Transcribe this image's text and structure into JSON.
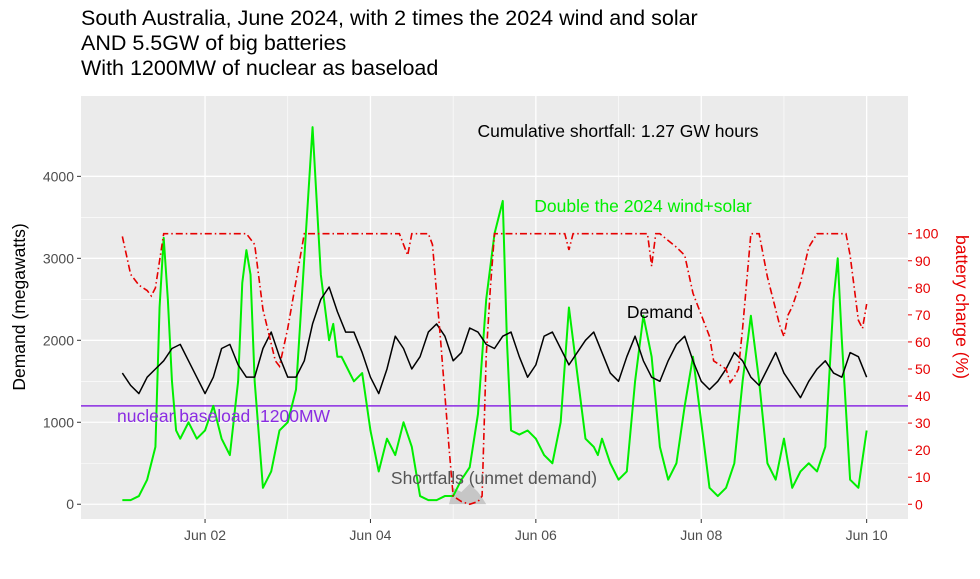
{
  "colors": {
    "panel": "#ebebeb",
    "grid": "#ffffff",
    "demand": "#000000",
    "renewables": "#00ee00",
    "battery": "#e60000",
    "nuclear": "#8a2be2",
    "shortfall": "#bdbdbd",
    "shortfall_label": "#555555",
    "axis_text": "#4d4d4d",
    "right_axis": "#e60000"
  },
  "chart_data": {
    "type": "line",
    "title_lines": [
      "South Australia, June 2024, with 2 times the 2024 wind and solar",
      "AND 5.5GW of big batteries",
      "With 1200MW of nuclear as baseload"
    ],
    "xlabel": "",
    "ylabel": "Demand (megawatts)",
    "y2label": "battery charge (%)",
    "xlim": [
      0.5,
      10.5
    ],
    "ylim": [
      -180,
      4980
    ],
    "y2lim": [
      -5.45,
      150.9
    ],
    "x_ticks": [
      2,
      4,
      6,
      8,
      10
    ],
    "x_tick_labels": [
      "Jun 02",
      "Jun 04",
      "Jun 06",
      "Jun 08",
      "Jun 10"
    ],
    "y_ticks": [
      0,
      1000,
      2000,
      3000,
      4000
    ],
    "y_tick_labels": [
      "0",
      "1000",
      "2000",
      "3000",
      "4000"
    ],
    "y2_ticks": [
      0,
      10,
      20,
      30,
      40,
      50,
      60,
      70,
      80,
      90,
      100
    ],
    "y2_tick_labels": [
      "0",
      "10",
      "20",
      "30",
      "40",
      "50",
      "60",
      "70",
      "80",
      "90",
      "100"
    ],
    "grid": true,
    "legend": "none",
    "annotations": {
      "cumulative": "Cumulative shortfall: 1.27 GW hours",
      "renewables": "Double the 2024 wind+solar",
      "demand": "Demand",
      "nuclear": "nuclear baseload ,1200MW",
      "shortfall": "Shortfalls (unmet demand)"
    },
    "series": [
      {
        "key": "demand",
        "axis": "left",
        "x": [
          1.0,
          1.1,
          1.2,
          1.3,
          1.4,
          1.5,
          1.6,
          1.7,
          1.8,
          1.9,
          2.0,
          2.1,
          2.2,
          2.3,
          2.4,
          2.5,
          2.6,
          2.7,
          2.8,
          2.9,
          3.0,
          3.1,
          3.2,
          3.3,
          3.4,
          3.5,
          3.6,
          3.7,
          3.8,
          3.9,
          4.0,
          4.1,
          4.2,
          4.3,
          4.4,
          4.5,
          4.6,
          4.7,
          4.8,
          4.9,
          5.0,
          5.1,
          5.2,
          5.3,
          5.4,
          5.5,
          5.6,
          5.7,
          5.8,
          5.9,
          6.0,
          6.1,
          6.2,
          6.3,
          6.4,
          6.5,
          6.6,
          6.7,
          6.8,
          6.9,
          7.0,
          7.1,
          7.2,
          7.3,
          7.4,
          7.5,
          7.6,
          7.7,
          7.8,
          7.9,
          8.0,
          8.1,
          8.2,
          8.3,
          8.4,
          8.5,
          8.6,
          8.7,
          8.8,
          8.9,
          9.0,
          9.1,
          9.2,
          9.3,
          9.4,
          9.5,
          9.6,
          9.7,
          9.8,
          9.9,
          10.0
        ],
        "values": [
          1600,
          1450,
          1350,
          1550,
          1650,
          1750,
          1900,
          1950,
          1750,
          1550,
          1350,
          1550,
          1900,
          1950,
          1700,
          1550,
          1550,
          1900,
          2100,
          1800,
          1550,
          1550,
          1750,
          2200,
          2500,
          2650,
          2350,
          2100,
          2100,
          1850,
          1550,
          1350,
          1650,
          2050,
          1900,
          1650,
          1800,
          2100,
          2200,
          2050,
          1750,
          1850,
          2150,
          2100,
          1950,
          1900,
          2050,
          2100,
          1800,
          1550,
          1700,
          2050,
          2100,
          1900,
          1700,
          1850,
          2000,
          2100,
          1850,
          1600,
          1500,
          1800,
          2050,
          1750,
          1550,
          1500,
          1750,
          1950,
          2050,
          1750,
          1500,
          1400,
          1500,
          1650,
          1850,
          1750,
          1550,
          1450,
          1650,
          1850,
          1600,
          1450,
          1300,
          1500,
          1650,
          1750,
          1600,
          1550,
          1850,
          1800,
          1550
        ]
      },
      {
        "key": "renewables",
        "axis": "left",
        "x": [
          1.0,
          1.1,
          1.2,
          1.3,
          1.4,
          1.45,
          1.5,
          1.55,
          1.6,
          1.65,
          1.7,
          1.8,
          1.9,
          2.0,
          2.1,
          2.2,
          2.3,
          2.4,
          2.45,
          2.5,
          2.55,
          2.6,
          2.7,
          2.8,
          2.9,
          3.0,
          3.1,
          3.2,
          3.3,
          3.4,
          3.5,
          3.55,
          3.6,
          3.65,
          3.7,
          3.8,
          3.9,
          4.0,
          4.1,
          4.2,
          4.3,
          4.4,
          4.5,
          4.6,
          4.7,
          4.8,
          4.9,
          5.0,
          5.1,
          5.2,
          5.3,
          5.4,
          5.5,
          5.6,
          5.65,
          5.7,
          5.8,
          5.9,
          6.0,
          6.1,
          6.2,
          6.3,
          6.4,
          6.5,
          6.6,
          6.7,
          6.75,
          6.8,
          6.9,
          7.0,
          7.1,
          7.2,
          7.3,
          7.4,
          7.5,
          7.6,
          7.7,
          7.8,
          7.9,
          8.0,
          8.1,
          8.2,
          8.3,
          8.4,
          8.5,
          8.6,
          8.7,
          8.8,
          8.9,
          9.0,
          9.1,
          9.2,
          9.3,
          9.4,
          9.5,
          9.6,
          9.65,
          9.7,
          9.8,
          9.9,
          10.0
        ],
        "values": [
          50,
          50,
          100,
          300,
          700,
          2400,
          3250,
          2500,
          1500,
          900,
          800,
          1000,
          800,
          900,
          1200,
          800,
          600,
          1500,
          2700,
          3100,
          2800,
          1500,
          200,
          400,
          900,
          1000,
          1400,
          3000,
          4600,
          2800,
          2000,
          2200,
          1800,
          1800,
          1700,
          1500,
          1600,
          900,
          400,
          800,
          600,
          1000,
          700,
          100,
          50,
          50,
          100,
          100,
          300,
          450,
          1100,
          2500,
          3300,
          3700,
          2000,
          900,
          850,
          900,
          800,
          600,
          500,
          1000,
          2400,
          1600,
          800,
          700,
          600,
          800,
          500,
          300,
          400,
          1500,
          2300,
          1800,
          700,
          300,
          500,
          1200,
          1800,
          1000,
          200,
          100,
          200,
          500,
          1500,
          2300,
          1500,
          500,
          300,
          800,
          200,
          400,
          500,
          400,
          700,
          2500,
          3000,
          2000,
          300,
          200,
          900
        ]
      },
      {
        "key": "battery",
        "axis": "right",
        "x": [
          1.0,
          1.05,
          1.1,
          1.2,
          1.3,
          1.35,
          1.4,
          1.5,
          2.0,
          2.5,
          2.6,
          2.7,
          2.85,
          2.9,
          3.0,
          3.2,
          3.4,
          3.6,
          3.8,
          4.0,
          4.2,
          4.35,
          4.4,
          4.45,
          4.5,
          4.6,
          4.7,
          4.75,
          4.85,
          4.95,
          5.0,
          5.1,
          5.2,
          5.3,
          5.35,
          5.4,
          5.45,
          5.5,
          5.6,
          6.0,
          6.35,
          6.4,
          6.45,
          6.5,
          7.0,
          7.35,
          7.4,
          7.45,
          7.5,
          7.7,
          7.8,
          7.9,
          8.0,
          8.1,
          8.15,
          8.2,
          8.3,
          8.35,
          8.4,
          8.45,
          8.5,
          8.6,
          8.65,
          8.7,
          8.8,
          8.9,
          8.95,
          9.0,
          9.05,
          9.1,
          9.2,
          9.3,
          9.4,
          9.5,
          9.75,
          9.8,
          9.85,
          9.9,
          9.95,
          10.0
        ],
        "values": [
          99,
          92,
          85,
          81,
          79,
          77,
          80,
          100,
          100,
          100,
          96,
          72,
          53,
          51,
          65,
          100,
          100,
          100,
          100,
          100,
          100,
          100,
          96,
          92,
          100,
          100,
          100,
          96,
          60,
          21,
          3,
          1,
          0,
          1,
          3,
          55,
          80,
          100,
          100,
          100,
          100,
          94,
          100,
          100,
          100,
          100,
          88,
          100,
          100,
          95,
          92,
          78,
          70,
          62,
          53,
          52,
          50,
          45,
          47,
          50,
          65,
          100,
          100,
          100,
          84,
          72,
          66,
          62,
          70,
          73,
          82,
          95,
          100,
          100,
          100,
          92,
          80,
          68,
          65,
          74
        ]
      },
      {
        "key": "nuclear",
        "axis": "left",
        "x": [
          0.5,
          10.5
        ],
        "values": [
          1200,
          1200
        ]
      },
      {
        "key": "shortfall",
        "axis": "left",
        "x": [
          4.95,
          5.0,
          5.1,
          5.2,
          5.3,
          5.35,
          5.4
        ],
        "values": [
          0,
          200,
          150,
          250,
          150,
          80,
          0
        ]
      }
    ]
  }
}
